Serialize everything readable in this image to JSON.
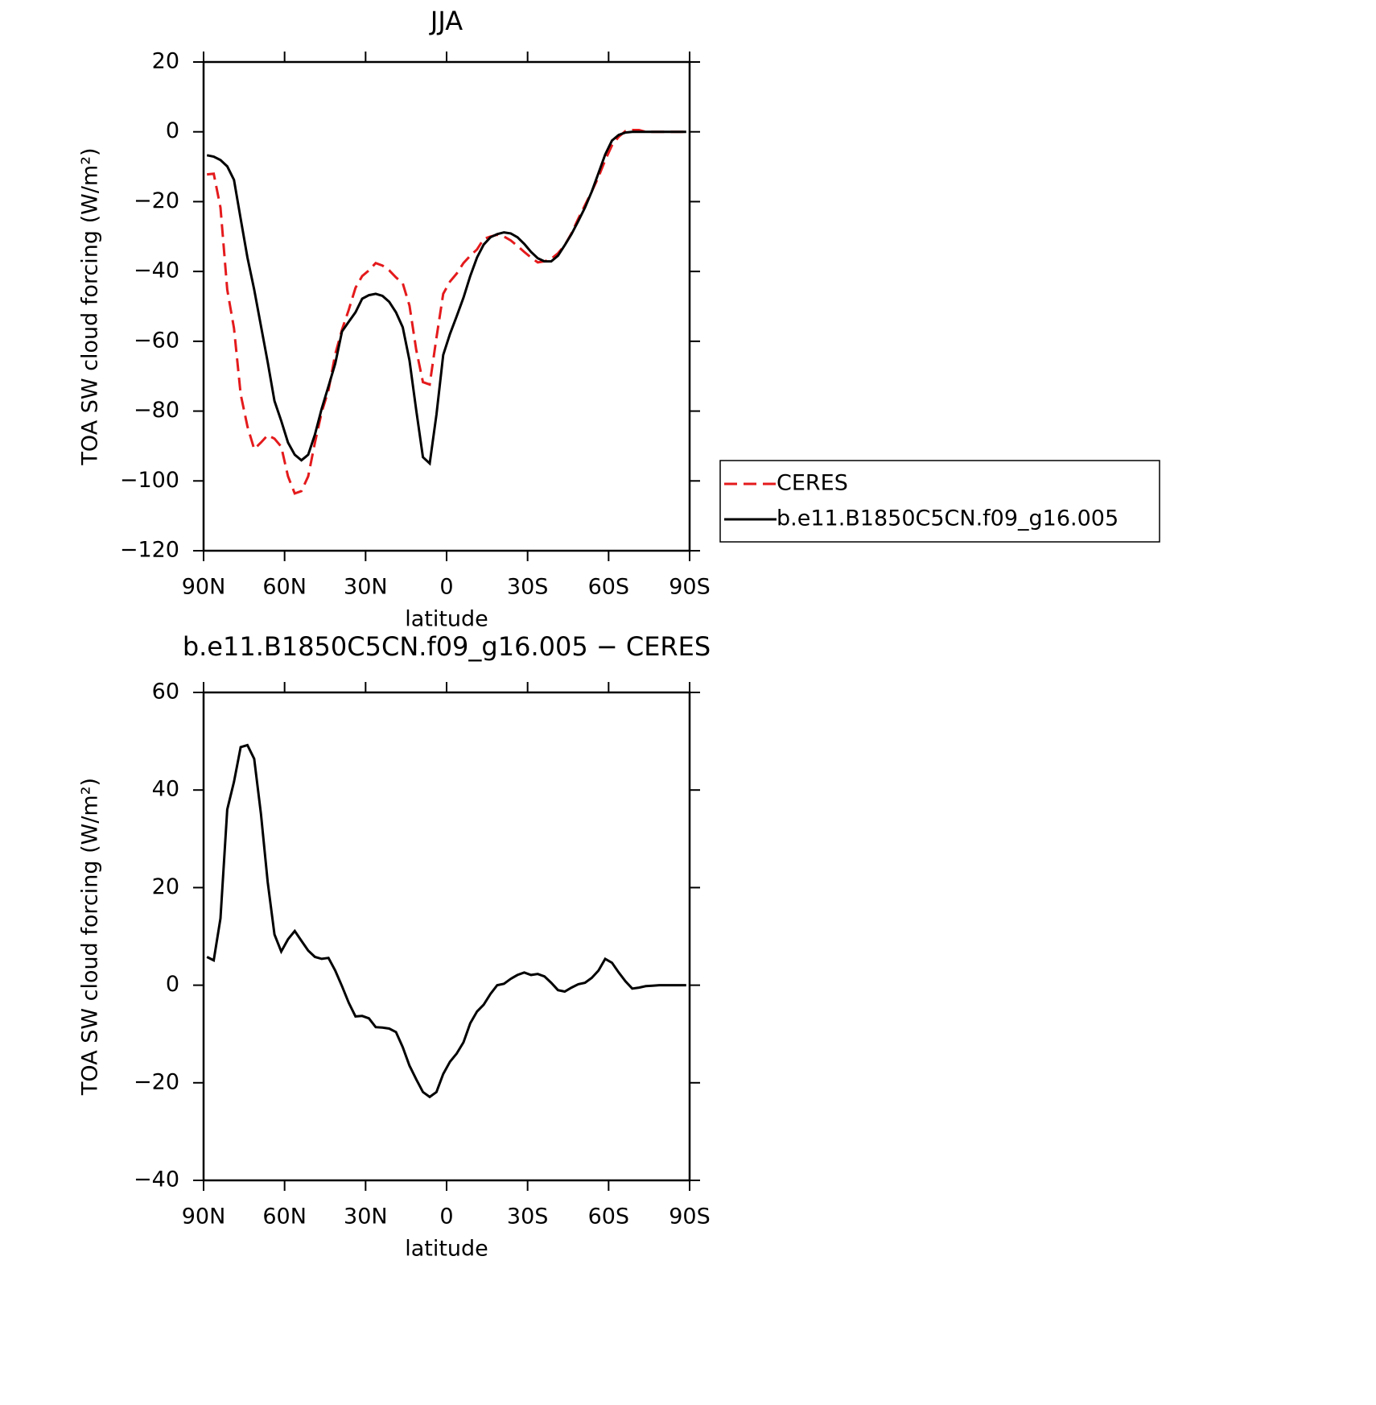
{
  "chart_data": [
    {
      "type": "line",
      "title": "JJA",
      "xlabel": "latitude",
      "ylabel": "TOA SW cloud forcing (W/m²)",
      "legend": "right",
      "x": [
        88.75,
        86.25,
        83.75,
        81.25,
        78.75,
        76.25,
        73.75,
        71.25,
        68.75,
        66.25,
        63.75,
        61.25,
        58.75,
        56.25,
        53.75,
        51.25,
        48.75,
        46.25,
        43.75,
        41.25,
        38.75,
        36.25,
        33.75,
        31.25,
        28.75,
        26.25,
        23.75,
        21.25,
        18.75,
        16.25,
        13.75,
        11.25,
        8.75,
        6.25,
        3.75,
        1.25,
        -1.25,
        -3.75,
        -6.25,
        -8.75,
        -11.25,
        -13.75,
        -16.25,
        -18.75,
        -21.25,
        -23.75,
        -26.25,
        -28.75,
        -31.25,
        -33.75,
        -36.25,
        -38.75,
        -41.25,
        -43.75,
        -46.25,
        -48.75,
        -51.25,
        -53.75,
        -56.25,
        -58.75,
        -61.25,
        -63.75,
        -66.25,
        -68.75,
        -71.25,
        -73.75,
        -76.25,
        -78.75,
        -81.25,
        -83.75,
        -86.25,
        -88.75
      ],
      "series": [
        {
          "name": "CERES",
          "color": "#e41a1c",
          "linestyle": "dashed",
          "values": [
            -12.2,
            -12.0,
            -21.7,
            -45.2,
            -56.3,
            -75.2,
            -84.4,
            -90.9,
            -89.0,
            -86.9,
            -87.9,
            -90.2,
            -98.7,
            -103.6,
            -102.9,
            -98.7,
            -89.0,
            -80.3,
            -74.0,
            -63.7,
            -56.7,
            -51.0,
            -44.7,
            -41.3,
            -39.7,
            -37.6,
            -38.3,
            -39.7,
            -41.7,
            -43.4,
            -49.8,
            -62.5,
            -71.7,
            -72.4,
            -59.0,
            -46.4,
            -42.9,
            -40.6,
            -37.6,
            -35.5,
            -33.7,
            -30.7,
            -30.0,
            -29.5,
            -30.0,
            -31.1,
            -32.7,
            -34.4,
            -36.0,
            -37.4,
            -37.1,
            -36.4,
            -34.8,
            -32.5,
            -29.1,
            -24.9,
            -21.0,
            -17.1,
            -12.9,
            -8.1,
            -3.9,
            -1.4,
            0.2,
            0.5,
            0.5,
            0,
            0,
            0,
            0,
            0,
            0,
            0
          ]
        },
        {
          "name": "b.e11.B1850C5CN.f09_g16.005",
          "color": "#000000",
          "linestyle": "solid",
          "values": [
            -6.7,
            -7.1,
            -8.1,
            -9.9,
            -13.8,
            -24.9,
            -36.0,
            -45.2,
            -55.6,
            -66.0,
            -77.1,
            -82.8,
            -89.0,
            -92.5,
            -94.1,
            -92.5,
            -86.7,
            -79.3,
            -72.9,
            -66.4,
            -57.2,
            -54.4,
            -51.7,
            -47.8,
            -46.8,
            -46.4,
            -47.0,
            -48.7,
            -51.7,
            -56.0,
            -65.5,
            -79.8,
            -93.2,
            -95.0,
            -81.0,
            -63.9,
            -57.9,
            -52.8,
            -47.5,
            -41.3,
            -36.0,
            -32.3,
            -30.2,
            -29.3,
            -28.8,
            -29.1,
            -30.2,
            -32.1,
            -34.4,
            -36.2,
            -37.1,
            -37.1,
            -35.5,
            -32.5,
            -29.3,
            -25.6,
            -21.7,
            -17.1,
            -11.8,
            -6.5,
            -2.5,
            -0.9,
            -0.2,
            0,
            0,
            0,
            0,
            0,
            0,
            0,
            0,
            0
          ]
        }
      ],
      "xlim": [
        90,
        -90
      ],
      "xticks": [
        {
          "value": 90,
          "label": "90N"
        },
        {
          "value": 60,
          "label": "60N"
        },
        {
          "value": 30,
          "label": "30N"
        },
        0,
        {
          "value": -30,
          "label": "30S"
        },
        {
          "value": -60,
          "label": "60S"
        },
        {
          "value": -90,
          "label": "90S"
        }
      ],
      "ylim": [
        -120,
        20
      ],
      "yticks": [
        {
          "value": -120,
          "label": "−120"
        },
        {
          "value": -100,
          "label": "−100"
        },
        {
          "value": -80,
          "label": "−80"
        },
        {
          "value": -60,
          "label": "−60"
        },
        {
          "value": -40,
          "label": "−40"
        },
        {
          "value": -20,
          "label": "−20"
        },
        0,
        20
      ]
    },
    {
      "type": "line",
      "title": "b.e11.B1850C5CN.f09_g16.005 − CERES",
      "xlabel": "latitude",
      "ylabel": "TOA SW cloud forcing (W/m²)",
      "x": [
        88.75,
        86.25,
        83.75,
        81.25,
        78.75,
        76.25,
        73.75,
        71.25,
        68.75,
        66.25,
        63.75,
        61.25,
        58.75,
        56.25,
        53.75,
        51.25,
        48.75,
        46.25,
        43.75,
        41.25,
        38.75,
        36.25,
        33.75,
        31.25,
        28.75,
        26.25,
        23.75,
        21.25,
        18.75,
        16.25,
        13.75,
        11.25,
        8.75,
        6.25,
        3.75,
        1.25,
        -1.25,
        -3.75,
        -6.25,
        -8.75,
        -11.25,
        -13.75,
        -16.25,
        -18.75,
        -21.25,
        -23.75,
        -26.25,
        -28.75,
        -31.25,
        -33.75,
        -36.25,
        -38.75,
        -41.25,
        -43.75,
        -46.25,
        -48.75,
        -51.25,
        -53.75,
        -56.25,
        -58.75,
        -61.25,
        -63.75,
        -66.25,
        -68.75,
        -71.25,
        -73.75,
        -76.25,
        -78.75,
        -81.25,
        -83.75,
        -86.25,
        -88.75
      ],
      "color": "#000000",
      "values": [
        5.8,
        5.1,
        13.7,
        36.0,
        41.7,
        48.8,
        49.2,
        46.4,
        35.1,
        21.1,
        10.4,
        6.9,
        9.4,
        11.1,
        9.1,
        7.1,
        5.8,
        5.4,
        5.6,
        3.0,
        -0.2,
        -3.6,
        -6.4,
        -6.3,
        -6.8,
        -8.6,
        -8.7,
        -8.9,
        -9.6,
        -12.7,
        -16.5,
        -19.3,
        -21.9,
        -22.9,
        -21.9,
        -18.2,
        -15.7,
        -14.0,
        -11.7,
        -7.8,
        -5.4,
        -4.0,
        -1.8,
        0.0,
        0.3,
        1.3,
        2.1,
        2.6,
        2.1,
        2.3,
        1.8,
        0.5,
        -1.0,
        -1.3,
        -0.5,
        0.2,
        0.5,
        1.5,
        3.0,
        5.4,
        4.6,
        2.6,
        0.8,
        -0.7,
        -0.5,
        -0.2,
        -0.1,
        0,
        0,
        0,
        0,
        0
      ],
      "xlim": [
        90,
        -90
      ],
      "xticks": [
        {
          "value": 90,
          "label": "90N"
        },
        {
          "value": 60,
          "label": "60N"
        },
        {
          "value": 30,
          "label": "30N"
        },
        0,
        {
          "value": -30,
          "label": "30S"
        },
        {
          "value": -60,
          "label": "60S"
        },
        {
          "value": -90,
          "label": "90S"
        }
      ],
      "ylim": [
        -40,
        60
      ],
      "yticks": [
        {
          "value": -40,
          "label": "−40"
        },
        {
          "value": -20,
          "label": "−20"
        },
        0,
        20,
        40,
        60
      ]
    }
  ]
}
